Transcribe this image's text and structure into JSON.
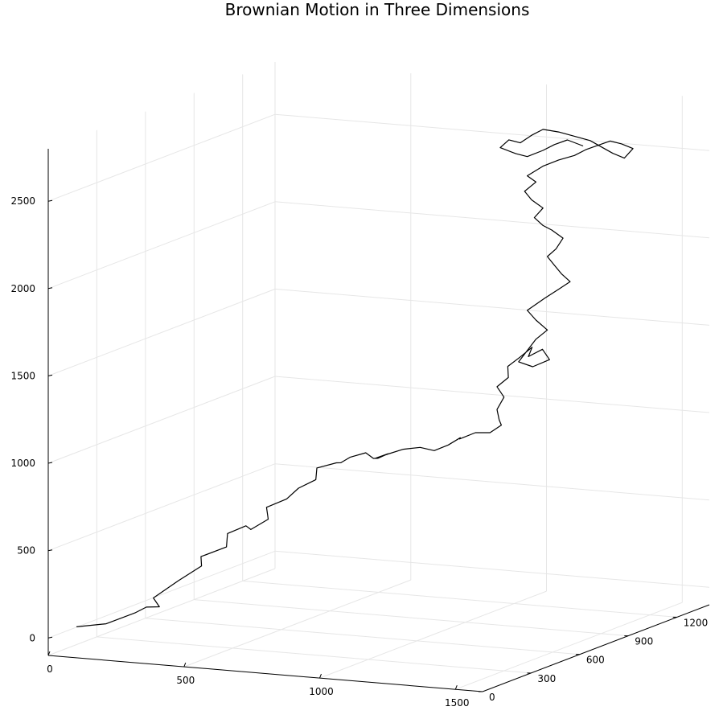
{
  "chart_data": {
    "type": "line",
    "title": "Brownian Motion in Three Dimensions",
    "xlabel": "",
    "ylabel": "",
    "zlabel": "",
    "xlim": [
      0,
      1600
    ],
    "ylim": [
      0,
      1400
    ],
    "zlim": [
      -100,
      2800
    ],
    "x_ticks": [
      0,
      500,
      1000,
      1500
    ],
    "y_ticks": [
      0,
      300,
      600,
      900,
      1200
    ],
    "z_ticks": [
      0,
      500,
      1000,
      1500,
      2000,
      2500
    ],
    "grid": true,
    "legend": "none",
    "line_color": "#000000",
    "grid_color": "#e6e6e6",
    "points": [
      [
        80,
        40,
        60
      ],
      [
        160,
        90,
        70
      ],
      [
        230,
        150,
        120
      ],
      [
        260,
        170,
        150
      ],
      [
        290,
        200,
        145
      ],
      [
        250,
        230,
        180
      ],
      [
        300,
        300,
        260
      ],
      [
        350,
        360,
        330
      ],
      [
        330,
        390,
        370
      ],
      [
        400,
        430,
        420
      ],
      [
        380,
        470,
        480
      ],
      [
        430,
        500,
        520
      ],
      [
        460,
        480,
        510
      ],
      [
        500,
        520,
        560
      ],
      [
        470,
        560,
        610
      ],
      [
        520,
        600,
        650
      ],
      [
        540,
        640,
        700
      ],
      [
        580,
        680,
        740
      ],
      [
        560,
        720,
        790
      ],
      [
        620,
        740,
        820
      ],
      [
        660,
        700,
        840
      ],
      [
        700,
        690,
        880
      ],
      [
        740,
        720,
        900
      ],
      [
        780,
        700,
        880
      ],
      [
        820,
        660,
        900
      ],
      [
        870,
        640,
        940
      ],
      [
        840,
        610,
        920
      ],
      [
        900,
        590,
        960
      ],
      [
        950,
        600,
        990
      ],
      [
        1000,
        620,
        1000
      ],
      [
        1040,
        640,
        980
      ],
      [
        1080,
        660,
        1010
      ],
      [
        1100,
        700,
        1040
      ],
      [
        1080,
        730,
        1020
      ],
      [
        1120,
        760,
        1050
      ],
      [
        1150,
        800,
        1040
      ],
      [
        1180,
        820,
        1080
      ],
      [
        1160,
        840,
        1100
      ],
      [
        1140,
        860,
        1150
      ],
      [
        1160,
        870,
        1220
      ],
      [
        1140,
        860,
        1280
      ],
      [
        1170,
        880,
        1330
      ],
      [
        1150,
        910,
        1380
      ],
      [
        1180,
        940,
        1430
      ],
      [
        1210,
        960,
        1480
      ],
      [
        1190,
        970,
        1420
      ],
      [
        1230,
        990,
        1460
      ],
      [
        1250,
        1000,
        1400
      ],
      [
        1200,
        980,
        1360
      ],
      [
        1160,
        960,
        1390
      ],
      [
        1200,
        1000,
        1510
      ],
      [
        1230,
        1020,
        1560
      ],
      [
        1200,
        1000,
        1620
      ],
      [
        1180,
        980,
        1680
      ],
      [
        1220,
        1020,
        1740
      ],
      [
        1260,
        1040,
        1790
      ],
      [
        1290,
        1060,
        1830
      ],
      [
        1270,
        1040,
        1880
      ],
      [
        1250,
        1030,
        1930
      ],
      [
        1230,
        1020,
        1980
      ],
      [
        1250,
        1040,
        2020
      ],
      [
        1270,
        1050,
        2080
      ],
      [
        1240,
        1030,
        2130
      ],
      [
        1220,
        1010,
        2160
      ],
      [
        1200,
        990,
        2210
      ],
      [
        1220,
        1010,
        2260
      ],
      [
        1190,
        990,
        2310
      ],
      [
        1170,
        980,
        2360
      ],
      [
        1200,
        1000,
        2410
      ],
      [
        1180,
        980,
        2450
      ],
      [
        1220,
        1010,
        2500
      ],
      [
        1260,
        1040,
        2530
      ],
      [
        1300,
        1070,
        2550
      ],
      [
        1330,
        1090,
        2580
      ],
      [
        1360,
        1120,
        2600
      ],
      [
        1390,
        1140,
        2620
      ],
      [
        1420,
        1160,
        2600
      ],
      [
        1450,
        1180,
        2570
      ],
      [
        1430,
        1160,
        2520
      ],
      [
        1400,
        1140,
        2550
      ],
      [
        1370,
        1120,
        2590
      ],
      [
        1340,
        1100,
        2630
      ],
      [
        1300,
        1070,
        2660
      ],
      [
        1260,
        1040,
        2690
      ],
      [
        1220,
        1010,
        2710
      ],
      [
        1190,
        990,
        2680
      ],
      [
        1160,
        970,
        2640
      ],
      [
        1130,
        950,
        2660
      ],
      [
        1110,
        930,
        2620
      ],
      [
        1150,
        960,
        2580
      ],
      [
        1180,
        980,
        2560
      ],
      [
        1220,
        1010,
        2590
      ],
      [
        1250,
        1030,
        2620
      ],
      [
        1280,
        1060,
        2640
      ],
      [
        1320,
        1090,
        2600
      ]
    ]
  }
}
